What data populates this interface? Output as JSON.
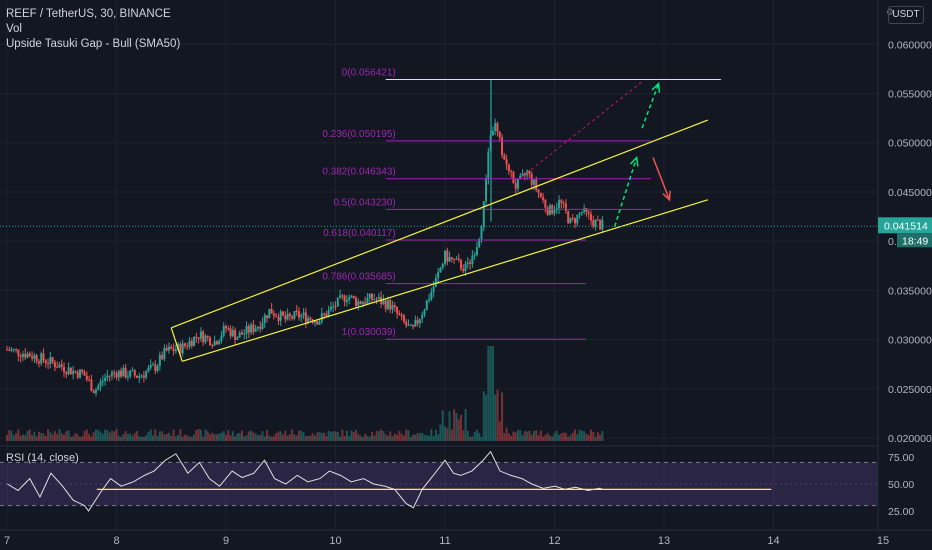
{
  "chart_data": {
    "type": "candlestick",
    "title": "REEF / TetherUS, 30, BINANCE",
    "indicators": [
      "Vol",
      "Upside Tasuki Gap - Bull (SMA50)"
    ],
    "unit": "USDT",
    "x_ticks": [
      "7",
      "8",
      "9",
      "10",
      "11",
      "12",
      "13",
      "14",
      "15"
    ],
    "y_ticks": [
      "0.020000",
      "0.025000",
      "0.030000",
      "0.035000",
      "0.040000",
      "0.045000",
      "0.050000",
      "0.055000",
      "0.060000"
    ],
    "ylim": [
      0.0195,
      0.0645
    ],
    "current_price": "0.041514",
    "countdown": "18:49",
    "price_path": [
      [
        7.0,
        0.029
      ],
      [
        7.2,
        0.0285
      ],
      [
        7.45,
        0.0275
      ],
      [
        7.6,
        0.0268
      ],
      [
        7.7,
        0.0265
      ],
      [
        7.8,
        0.0248
      ],
      [
        7.9,
        0.0262
      ],
      [
        8.0,
        0.0267
      ],
      [
        8.2,
        0.0263
      ],
      [
        8.35,
        0.0272
      ],
      [
        8.45,
        0.0288
      ],
      [
        8.6,
        0.0292
      ],
      [
        8.75,
        0.0305
      ],
      [
        8.9,
        0.0298
      ],
      [
        9.0,
        0.0312
      ],
      [
        9.1,
        0.0303
      ],
      [
        9.3,
        0.0315
      ],
      [
        9.4,
        0.033
      ],
      [
        9.55,
        0.032
      ],
      [
        9.65,
        0.0325
      ],
      [
        9.85,
        0.032
      ],
      [
        10.0,
        0.0335
      ],
      [
        10.1,
        0.0345
      ],
      [
        10.2,
        0.0338
      ],
      [
        10.35,
        0.0342
      ],
      [
        10.5,
        0.0335
      ],
      [
        10.6,
        0.032
      ],
      [
        10.7,
        0.0308
      ],
      [
        10.8,
        0.033
      ],
      [
        10.9,
        0.0355
      ],
      [
        11.0,
        0.0385
      ],
      [
        11.1,
        0.0378
      ],
      [
        11.2,
        0.0372
      ],
      [
        11.3,
        0.04
      ],
      [
        11.35,
        0.043
      ],
      [
        11.4,
        0.05
      ],
      [
        11.45,
        0.052
      ],
      [
        11.55,
        0.048
      ],
      [
        11.65,
        0.0455
      ],
      [
        11.75,
        0.047
      ],
      [
        11.85,
        0.045
      ],
      [
        11.95,
        0.043
      ],
      [
        12.05,
        0.044
      ],
      [
        12.15,
        0.0418
      ],
      [
        12.25,
        0.043
      ],
      [
        12.35,
        0.042
      ],
      [
        12.45,
        0.0415
      ]
    ],
    "spike": {
      "x": 11.42,
      "high": 0.0564,
      "low": 0.042
    },
    "fib_levels": [
      {
        "label": "0(0.056421)",
        "value": 0.056421
      },
      {
        "label": "0.236(0.050195)",
        "value": 0.050195
      },
      {
        "label": "0.382(0.046343)",
        "value": 0.046343
      },
      {
        "label": "0.5(0.043230)",
        "value": 0.04323
      },
      {
        "label": "0.618(0.040117)",
        "value": 0.040117
      },
      {
        "label": "0.786(0.035685)",
        "value": 0.035685
      },
      {
        "label": "1(0.030039)",
        "value": 0.030039
      }
    ],
    "fib_range_x": [
      10.55,
      13.2
    ],
    "channel_upper": [
      [
        8.5,
        0.0312
      ],
      [
        13.4,
        0.0523
      ]
    ],
    "channel_lower": [
      [
        8.6,
        0.0278
      ],
      [
        13.4,
        0.0442
      ]
    ],
    "channel_start": [
      [
        8.5,
        0.0312
      ],
      [
        8.6,
        0.0278
      ]
    ],
    "dotted_projection": [
      [
        11.7,
        0.0465
      ],
      [
        12.8,
        0.0562
      ]
    ],
    "arrows": [
      {
        "color": "green",
        "from": [
          12.55,
          0.0415
        ],
        "to": [
          12.75,
          0.0485
        ]
      },
      {
        "color": "green",
        "from": [
          12.8,
          0.0515
        ],
        "to": [
          12.95,
          0.056
        ]
      },
      {
        "color": "red",
        "from": [
          12.9,
          0.0485
        ],
        "to": [
          13.05,
          0.0442
        ]
      }
    ],
    "rsi": {
      "label": "RSI (14, close)",
      "y_ticks": [
        "25.00",
        "50.00",
        "75.00"
      ],
      "upper_band": 70,
      "lower_band": 30,
      "support_level": 45,
      "path": [
        [
          7.0,
          50
        ],
        [
          7.1,
          44
        ],
        [
          7.2,
          55
        ],
        [
          7.3,
          38
        ],
        [
          7.4,
          60
        ],
        [
          7.5,
          48
        ],
        [
          7.6,
          35
        ],
        [
          7.7,
          30
        ],
        [
          7.75,
          25
        ],
        [
          7.85,
          42
        ],
        [
          7.95,
          55
        ],
        [
          8.05,
          48
        ],
        [
          8.15,
          52
        ],
        [
          8.25,
          58
        ],
        [
          8.35,
          62
        ],
        [
          8.45,
          72
        ],
        [
          8.55,
          78
        ],
        [
          8.65,
          60
        ],
        [
          8.75,
          70
        ],
        [
          8.85,
          55
        ],
        [
          8.95,
          48
        ],
        [
          9.05,
          62
        ],
        [
          9.15,
          56
        ],
        [
          9.25,
          60
        ],
        [
          9.35,
          72
        ],
        [
          9.45,
          55
        ],
        [
          9.55,
          50
        ],
        [
          9.65,
          58
        ],
        [
          9.75,
          52
        ],
        [
          9.85,
          55
        ],
        [
          9.95,
          62
        ],
        [
          10.05,
          58
        ],
        [
          10.15,
          52
        ],
        [
          10.25,
          55
        ],
        [
          10.35,
          50
        ],
        [
          10.45,
          48
        ],
        [
          10.55,
          45
        ],
        [
          10.65,
          32
        ],
        [
          10.72,
          28
        ],
        [
          10.8,
          45
        ],
        [
          10.9,
          60
        ],
        [
          11.0,
          72
        ],
        [
          11.08,
          60
        ],
        [
          11.15,
          58
        ],
        [
          11.25,
          62
        ],
        [
          11.35,
          72
        ],
        [
          11.42,
          80
        ],
        [
          11.5,
          62
        ],
        [
          11.6,
          58
        ],
        [
          11.7,
          55
        ],
        [
          11.8,
          50
        ],
        [
          11.9,
          46
        ],
        [
          12.0,
          48
        ],
        [
          12.1,
          45
        ],
        [
          12.2,
          47
        ],
        [
          12.3,
          44
        ],
        [
          12.4,
          46
        ],
        [
          12.45,
          45
        ]
      ],
      "support_x": [
        7.82,
        13.98
      ]
    },
    "colors": {
      "up": "#26a69a",
      "down": "#ef5350",
      "fib": "#9c27b0",
      "channel": "#f5f53a",
      "rsi": "#7e57c2"
    }
  }
}
